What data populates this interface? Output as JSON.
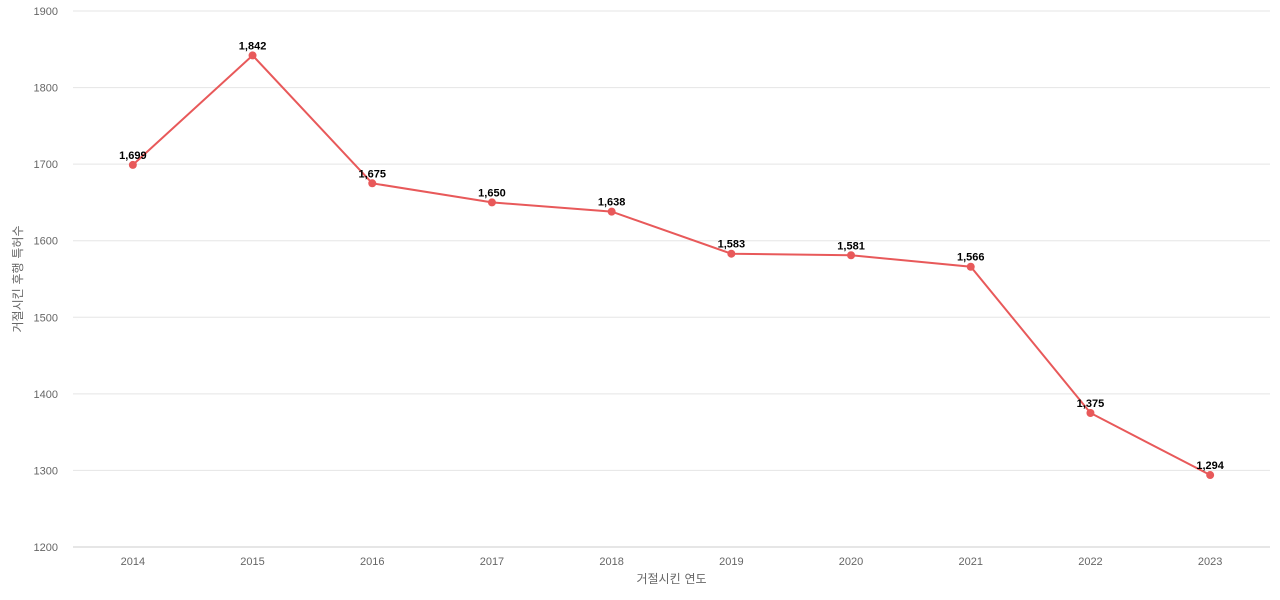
{
  "chart_data": {
    "type": "line",
    "title": "",
    "xlabel": "거절시킨 연도",
    "ylabel": "거절시킨 후행 특허수",
    "x": [
      "2014",
      "2015",
      "2016",
      "2017",
      "2018",
      "2019",
      "2020",
      "2021",
      "2022",
      "2023"
    ],
    "series": [
      {
        "values": [
          1699,
          1842,
          1675,
          1650,
          1638,
          1583,
          1581,
          1566,
          1375,
          1294
        ],
        "labels": [
          "1,699",
          "1,842",
          "1,675",
          "1,650",
          "1,638",
          "1,583",
          "1,581",
          "1,566",
          "1,375",
          "1,294"
        ]
      }
    ],
    "ylim": [
      1200,
      1900
    ],
    "yticks": [
      1200,
      1300,
      1400,
      1500,
      1600,
      1700,
      1800,
      1900
    ],
    "grid": true,
    "legend": "none",
    "colors": {
      "line": "#e8595a",
      "marker": "#e8595a"
    }
  }
}
